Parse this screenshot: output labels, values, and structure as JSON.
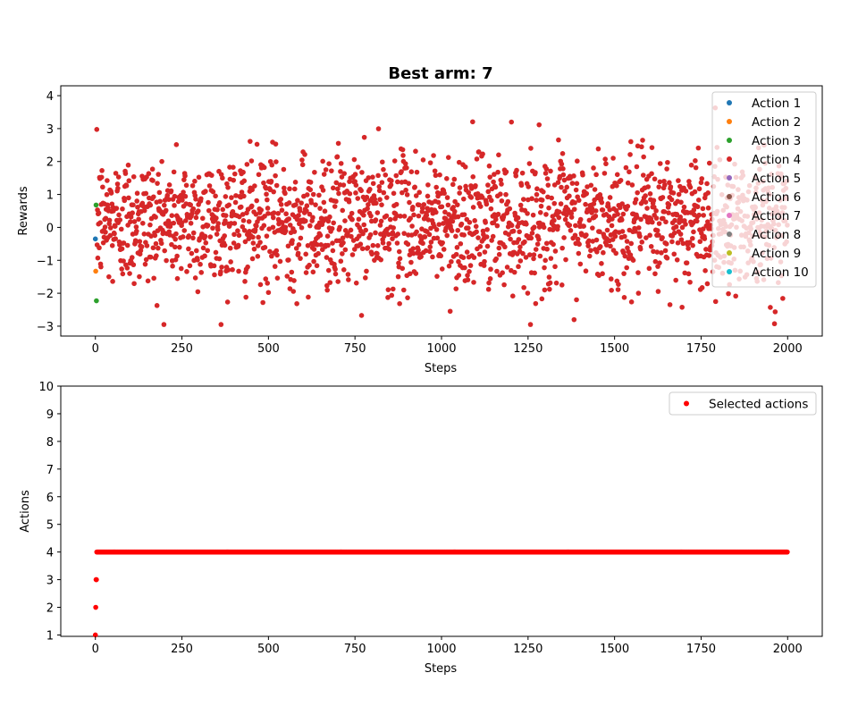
{
  "chart_data": [
    {
      "type": "scatter",
      "title": "Best arm: 7",
      "xlabel": "Steps",
      "ylabel": "Rewards",
      "xlim": [
        -100,
        2100
      ],
      "ylim": [
        -3.3,
        4.3
      ],
      "xticks": [
        0,
        250,
        500,
        750,
        1000,
        1250,
        1500,
        1750,
        2000
      ],
      "yticks": [
        -3,
        -2,
        -1,
        0,
        1,
        2,
        3,
        4
      ],
      "legend_position": "upper right",
      "series": [
        {
          "name": "Action 1",
          "color": "#1f77b4",
          "x": [
            0
          ],
          "y": [
            -0.35
          ]
        },
        {
          "name": "Action 2",
          "color": "#ff7f0e",
          "x": [
            1
          ],
          "y": [
            -1.33
          ]
        },
        {
          "name": "Action 3",
          "color": "#2ca02c",
          "x": [
            2,
            3
          ],
          "y": [
            0.68,
            -2.23
          ]
        },
        {
          "name": "Action 4",
          "color": "#d62728",
          "x_range": [
            4,
            1999
          ],
          "y_mean": 0.2,
          "y_std": 1.0,
          "y_min": -2.95,
          "y_max": 3.95
        },
        {
          "name": "Action 5",
          "color": "#9467bd",
          "x": [],
          "y": []
        },
        {
          "name": "Action 6",
          "color": "#8c564b",
          "x": [],
          "y": []
        },
        {
          "name": "Action 7",
          "color": "#e377c2",
          "x": [],
          "y": []
        },
        {
          "name": "Action 8",
          "color": "#7f7f7f",
          "x": [],
          "y": []
        },
        {
          "name": "Action 9",
          "color": "#bcbd22",
          "x": [],
          "y": []
        },
        {
          "name": "Action 10",
          "color": "#17becf",
          "x": [],
          "y": []
        }
      ]
    },
    {
      "type": "scatter",
      "xlabel": "Steps",
      "ylabel": "Actions",
      "xlim": [
        -100,
        2100
      ],
      "ylim": [
        0.95,
        10
      ],
      "xticks": [
        0,
        250,
        500,
        750,
        1000,
        1250,
        1500,
        1750,
        2000
      ],
      "yticks": [
        1,
        2,
        3,
        4,
        5,
        6,
        7,
        8,
        9,
        10
      ],
      "legend_position": "upper right",
      "series": [
        {
          "name": "Selected actions",
          "color": "#ff0000",
          "points": [
            [
              0,
              1
            ],
            [
              1,
              2
            ],
            [
              2,
              3
            ],
            [
              3,
              3
            ]
          ],
          "constant_segment": {
            "x_range": [
              4,
              1999
            ],
            "y": 4
          }
        }
      ]
    }
  ]
}
